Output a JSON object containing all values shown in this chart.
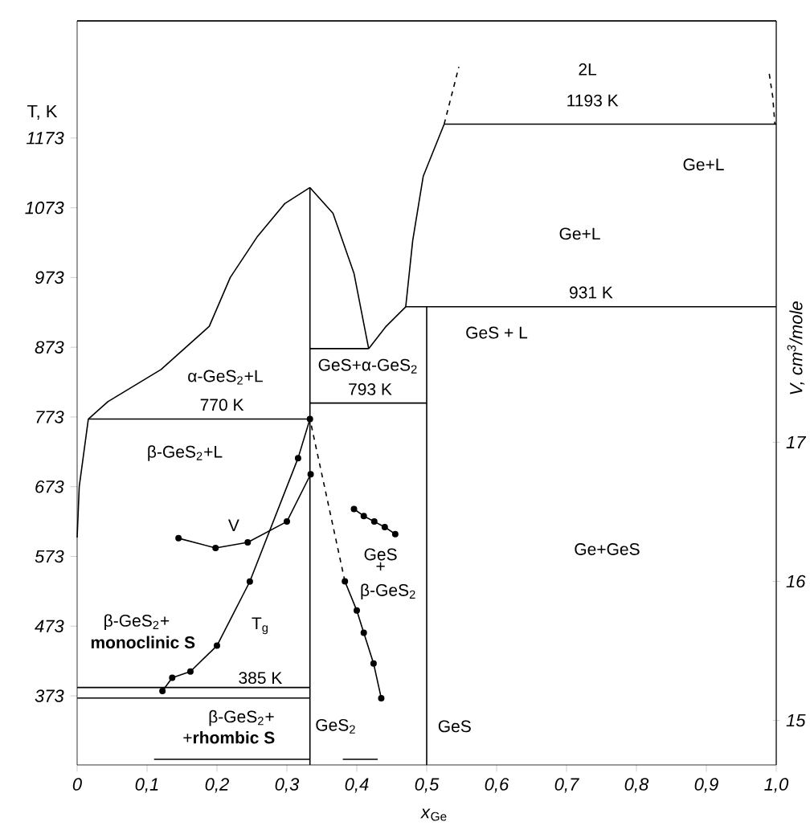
{
  "chart_data": {
    "type": "line",
    "xlabel": "*x*$_{Ge}$",
    "ylabel": "T, K",
    "y2label": "V, cm$^{3}$/mole",
    "xlim": [
      0,
      1.0
    ],
    "ylim": [
      274,
      1341
    ],
    "y2lim": [
      14.68,
      20.03
    ],
    "xticks": [
      0,
      {
        "value": 0.1,
        "label": "0,1"
      },
      {
        "value": 0.2,
        "label": "0,2"
      },
      {
        "value": 0.3,
        "label": "0,3"
      },
      {
        "value": 0.4,
        "label": "0,4"
      },
      {
        "value": 0.5,
        "label": "0,5"
      },
      {
        "value": 0.6,
        "label": "0,6"
      },
      {
        "value": 0.7,
        "label": "0,7"
      },
      {
        "value": 0.8,
        "label": "0,8"
      },
      {
        "value": 0.9,
        "label": "0,9"
      },
      {
        "value": 1.0,
        "label": "1,0"
      }
    ],
    "yticks": [
      373,
      473,
      573,
      673,
      773,
      873,
      973,
      1073,
      1173
    ],
    "y2ticks": [
      15,
      16,
      17
    ],
    "grid": false,
    "series": [
      {
        "color": "#000000",
        "x": [
          0,
          0.003,
          0.016,
          0.044,
          0.12,
          0.189,
          0.219,
          0.258,
          0.297,
          0.333
        ],
        "values": [
          600,
          673,
          770,
          795,
          841,
          903,
          973,
          1032,
          1079,
          1102
        ]
      },
      {
        "color": "#000000",
        "x": [
          0.333,
          0.366,
          0.396,
          0.417
        ],
        "values": [
          1102,
          1065,
          979,
          871
        ]
      },
      {
        "color": "#000000",
        "x": [
          0.417,
          0.442,
          0.47,
          0.48,
          0.495,
          0.525
        ],
        "values": [
          871,
          903,
          931,
          1026,
          1118,
          1193
        ]
      },
      {
        "color": "#000000",
        "line_style": "dashed",
        "x": [
          0.525,
          0.546
        ],
        "values": [
          1193,
          1275
        ]
      },
      {
        "color": "#000000",
        "line_style": "dashed",
        "x": [
          0.99,
          0.995,
          0.998
        ],
        "values": [
          1265,
          1232,
          1193
        ]
      },
      {
        "color": "#000000",
        "x": [
          0.525,
          1.0
        ],
        "values": [
          1193,
          1193
        ]
      },
      {
        "color": "#000000",
        "x": [
          0.47,
          1.0
        ],
        "values": [
          931,
          931
        ]
      },
      {
        "color": "#000000",
        "x": [
          0.016,
          0.333
        ],
        "values": [
          770,
          770
        ]
      },
      {
        "color": "#000000",
        "x": [
          0.333,
          0.417
        ],
        "values": [
          871,
          871
        ]
      },
      {
        "color": "#000000",
        "x": [
          0.333,
          0.5
        ],
        "values": [
          793,
          793
        ]
      },
      {
        "color": "#000000",
        "x": [
          0.333,
          0.333
        ],
        "values": [
          274,
          1102
        ]
      },
      {
        "color": "#000000",
        "x": [
          0.5,
          0.5
        ],
        "values": [
          274,
          931
        ]
      },
      {
        "color": "#000000",
        "x": [
          0,
          0.333
        ],
        "values": [
          385,
          385
        ]
      },
      {
        "color": "#000000",
        "x": [
          0,
          0.333
        ],
        "values": [
          370,
          370
        ]
      },
      {
        "color": "#000000",
        "x": [
          0.11,
          0.333
        ],
        "values": [
          282,
          282
        ]
      },
      {
        "color": "#000000",
        "x": [
          0.38,
          0.43
        ],
        "values": [
          282,
          282
        ]
      },
      {
        "color": "#000000",
        "marker": "circle",
        "x": [
          0.122,
          0.136,
          0.162,
          0.2,
          0.247,
          0.316,
          0.333
        ],
        "values": [
          380,
          399,
          408,
          445,
          537,
          714,
          770
        ]
      },
      {
        "color": "#000000",
        "marker": "circle",
        "axis": "y2",
        "x": [
          0.145,
          0.198,
          0.244,
          0.3,
          0.334
        ],
        "values": [
          16.31,
          16.24,
          16.28,
          16.43,
          16.77
        ]
      },
      {
        "color": "#000000",
        "line_style": "dashed",
        "axis": "y2",
        "x": [
          0.335,
          0.383
        ],
        "values": [
          17.12,
          16.0
        ]
      },
      {
        "color": "#000000",
        "marker": "circle",
        "axis": "y2",
        "x": [
          0.383,
          0.4,
          0.41,
          0.424,
          0.435
        ],
        "values": [
          16.0,
          15.79,
          15.63,
          15.41,
          15.16
        ]
      },
      {
        "color": "#000000",
        "marker": "circle",
        "axis": "y2",
        "x": [
          0.396,
          0.41,
          0.425,
          0.44,
          0.455
        ],
        "values": [
          16.52,
          16.47,
          16.43,
          16.39,
          16.34
        ]
      }
    ],
    "annotations": [
      "2L",
      "1193 K",
      "Ge+L",
      "Ge+L",
      "931 K",
      "GeS + L",
      "GeS+α-GeS$_{2}$",
      "793 K",
      "α-GeS$_{2}$+L",
      "770 K",
      "β-GeS$_{2}$+L",
      "V",
      "T$_{g}$",
      "β-GeS$_{2}$+",
      "**monoclinic S**",
      "385 K",
      "β-GeS$_{2}$+",
      "+**rhombic S**",
      "GeS$_{2}$",
      "GeS",
      "+",
      "β-GeS$_{2}$",
      "GeS",
      "Ge+GeS"
    ]
  }
}
